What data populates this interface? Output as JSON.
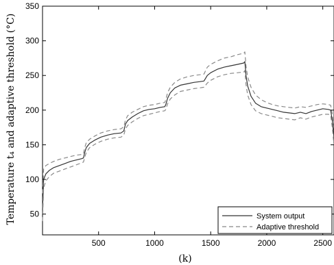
{
  "chart_data": {
    "type": "line",
    "title": "",
    "xlabel": "(k)",
    "ylabel": "Temperature t₄ and adaptive threshold (°C)",
    "xlim": [
      0,
      2600
    ],
    "ylim": [
      20,
      350
    ],
    "x_ticks": [
      500,
      1000,
      1500,
      2000,
      2500
    ],
    "x_tick_labels": [
      "500",
      "1000",
      "1500",
      "2000",
      "2500"
    ],
    "y_ticks": [
      50,
      100,
      150,
      200,
      250,
      300,
      350
    ],
    "y_tick_labels": [
      "50",
      "100",
      "150",
      "200",
      "250",
      "300",
      "350"
    ],
    "grid": false,
    "legend_position": "bottom-right",
    "series": [
      {
        "name": "System output",
        "style": "solid",
        "color": "#333333",
        "x": [
          0,
          10,
          30,
          60,
          100,
          150,
          200,
          250,
          300,
          350,
          365,
          375,
          390,
          420,
          470,
          520,
          580,
          640,
          700,
          725,
          740,
          760,
          800,
          850,
          900,
          950,
          1000,
          1050,
          1090,
          1100,
          1115,
          1140,
          1180,
          1230,
          1290,
          1350,
          1400,
          1440,
          1455,
          1470,
          1500,
          1560,
          1620,
          1680,
          1740,
          1795,
          1805,
          1815,
          1830,
          1860,
          1900,
          1950,
          2000,
          2050,
          2100,
          2150,
          2200,
          2250,
          2300,
          2350,
          2400,
          2450,
          2500,
          2550,
          2570,
          2585,
          2600
        ],
        "y": [
          57,
          100,
          108,
          113,
          117,
          120,
          123,
          126,
          128,
          130,
          131,
          138,
          146,
          152,
          157,
          161,
          164,
          166,
          167,
          170,
          180,
          185,
          190,
          195,
          199,
          201,
          202,
          204,
          205,
          208,
          217,
          225,
          232,
          236,
          238,
          240,
          241,
          242,
          246,
          250,
          254,
          259,
          262,
          264,
          266,
          268,
          270,
          250,
          235,
          220,
          210,
          205,
          203,
          201,
          199,
          197,
          196,
          195,
          197,
          195,
          198,
          200,
          202,
          201,
          200,
          185,
          160
        ]
      },
      {
        "name": "Adaptive threshold",
        "style": "dashed",
        "color": "#888888",
        "x": [
          0,
          10,
          30,
          60,
          100,
          150,
          200,
          250,
          300,
          350,
          365,
          375,
          390,
          420,
          470,
          520,
          580,
          640,
          700,
          725,
          740,
          760,
          800,
          850,
          900,
          950,
          1000,
          1050,
          1090,
          1100,
          1115,
          1140,
          1180,
          1230,
          1290,
          1350,
          1400,
          1440,
          1455,
          1470,
          1500,
          1560,
          1620,
          1680,
          1740,
          1795,
          1805,
          1815,
          1830,
          1860,
          1900,
          1950,
          2000,
          2050,
          2100,
          2150,
          2200,
          2250,
          2300,
          2350,
          2400,
          2450,
          2500,
          2550,
          2570,
          2585,
          2600
        ],
        "y": [
          80,
          115,
          120,
          123,
          126,
          129,
          131,
          133,
          135,
          136,
          137,
          145,
          153,
          158,
          163,
          167,
          170,
          172,
          173,
          176,
          186,
          192,
          197,
          201,
          205,
          207,
          208,
          210,
          211,
          215,
          225,
          233,
          240,
          245,
          248,
          250,
          251,
          252,
          257,
          262,
          266,
          271,
          275,
          277,
          280,
          282,
          284,
          264,
          248,
          233,
          222,
          215,
          211,
          208,
          206,
          205,
          204,
          203,
          205,
          204,
          206,
          208,
          209,
          208,
          207,
          195,
          170
        ]
      },
      {
        "name": "",
        "style": "dashed",
        "color": "#888888",
        "x": [
          0,
          10,
          30,
          60,
          100,
          150,
          200,
          250,
          300,
          350,
          365,
          375,
          390,
          420,
          470,
          520,
          580,
          640,
          700,
          725,
          740,
          760,
          800,
          850,
          900,
          950,
          1000,
          1050,
          1090,
          1100,
          1115,
          1140,
          1180,
          1230,
          1290,
          1350,
          1400,
          1440,
          1455,
          1470,
          1500,
          1560,
          1620,
          1680,
          1740,
          1795,
          1805,
          1815,
          1830,
          1860,
          1900,
          1950,
          2000,
          2050,
          2100,
          2150,
          2200,
          2250,
          2300,
          2350,
          2400,
          2450,
          2500,
          2550,
          2570,
          2585,
          2600
        ],
        "y": [
          40,
          88,
          98,
          104,
          109,
          112,
          115,
          118,
          121,
          124,
          125,
          131,
          139,
          146,
          151,
          155,
          158,
          160,
          161,
          164,
          173,
          178,
          183,
          188,
          192,
          194,
          196,
          198,
          199,
          201,
          209,
          216,
          222,
          227,
          229,
          231,
          232,
          233,
          236,
          239,
          243,
          248,
          251,
          253,
          254,
          255,
          257,
          237,
          222,
          208,
          199,
          195,
          193,
          191,
          189,
          188,
          187,
          186,
          189,
          187,
          190,
          192,
          194,
          194,
          193,
          175,
          150
        ]
      }
    ]
  }
}
